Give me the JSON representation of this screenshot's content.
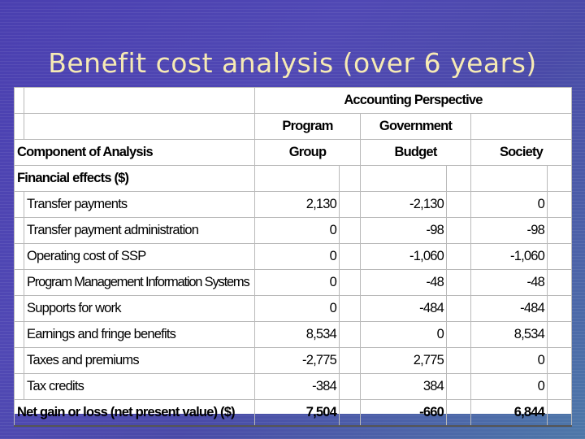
{
  "title": "Benefit cost analysis (over 6 years)",
  "table": {
    "perspective_header": "Accounting Perspective",
    "col_headers": {
      "component": "Component of Analysis",
      "program_line1": "Program",
      "program_line2": "Group",
      "government_line1": "Government",
      "government_line2": "Budget",
      "society": "Society"
    },
    "section": "Financial effects ($)",
    "rows": [
      {
        "label": "Transfer payments",
        "program": "2,130",
        "government": "-2,130",
        "society": "0"
      },
      {
        "label": "Transfer payment administration",
        "program": "0",
        "government": "-98",
        "society": "-98"
      },
      {
        "label": "Operating cost of SSP",
        "program": "0",
        "government": "-1,060",
        "society": "-1,060"
      },
      {
        "label": "Program Management Information Systems",
        "program": "0",
        "government": "-48",
        "society": "-48"
      },
      {
        "label": "Supports for work",
        "program": "0",
        "government": "-484",
        "society": "-484"
      },
      {
        "label": "Earnings and fringe benefits",
        "program": "8,534",
        "government": "0",
        "society": "8,534"
      },
      {
        "label": "Taxes and premiums",
        "program": "-2,775",
        "government": "2,775",
        "society": "0"
      },
      {
        "label": "Tax credits",
        "program": "-384",
        "government": "384",
        "society": "0"
      }
    ],
    "total": {
      "label": "Net gain or loss (net present value) ($)",
      "program": "7,504",
      "government": "-660",
      "society": "6,844"
    }
  }
}
